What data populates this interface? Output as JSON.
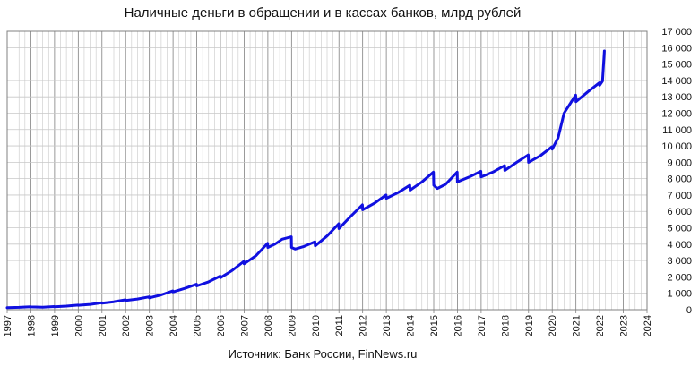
{
  "chart_data": {
    "type": "line",
    "title": "Наличные деньги в обращении и в кассах банков, млрд рублей",
    "source": "Источник: Банк России, FinNews.ru",
    "xlabel": "",
    "ylabel": "",
    "xlim": [
      1997,
      2024
    ],
    "ylim": [
      0,
      17000
    ],
    "grid": true,
    "legend": "none",
    "x_ticks": [
      "1997",
      "1998",
      "1999",
      "2000",
      "2001",
      "2002",
      "2003",
      "2004",
      "2005",
      "2006",
      "2007",
      "2008",
      "2009",
      "2010",
      "2011",
      "2012",
      "2013",
      "2014",
      "2015",
      "2016",
      "2017",
      "2018",
      "2019",
      "2020",
      "2021",
      "2022",
      "2023",
      "2024"
    ],
    "y_ticks": [
      "0",
      "1 000",
      "2 000",
      "3 000",
      "4 000",
      "5 000",
      "6 000",
      "7 000",
      "8 000",
      "9 000",
      "10 000",
      "11 000",
      "12 000",
      "13 000",
      "14 000",
      "15 000",
      "16 000",
      "17 000"
    ],
    "y_tick_values": [
      0,
      1000,
      2000,
      3000,
      4000,
      5000,
      6000,
      7000,
      8000,
      9000,
      10000,
      11000,
      12000,
      13000,
      14000,
      15000,
      16000,
      17000
    ],
    "colors": {
      "line": "#1010e0",
      "grid": "#c8c8c8",
      "axis": "#808080"
    },
    "series": [
      {
        "name": "",
        "x": [
          1997.0,
          1997.5,
          1997.99,
          1998.0,
          1998.5,
          1998.99,
          1999.0,
          1999.5,
          1999.99,
          2000.0,
          2000.5,
          2000.99,
          2001.0,
          2001.5,
          2001.99,
          2002.0,
          2002.5,
          2002.99,
          2003.0,
          2003.5,
          2003.99,
          2004.0,
          2004.5,
          2004.99,
          2005.0,
          2005.5,
          2005.99,
          2006.0,
          2006.5,
          2006.99,
          2007.0,
          2007.5,
          2007.99,
          2008.0,
          2008.3,
          2008.6,
          2008.99,
          2009.0,
          2009.15,
          2009.5,
          2009.99,
          2010.0,
          2010.5,
          2010.99,
          2011.0,
          2011.5,
          2011.99,
          2012.0,
          2012.5,
          2012.99,
          2013.0,
          2013.5,
          2013.99,
          2014.0,
          2014.5,
          2014.99,
          2015.0,
          2015.15,
          2015.5,
          2015.99,
          2016.0,
          2016.5,
          2016.99,
          2017.0,
          2017.5,
          2017.99,
          2018.0,
          2018.5,
          2018.99,
          2019.0,
          2019.5,
          2019.99,
          2020.0,
          2020.25,
          2020.5,
          2020.99,
          2021.0,
          2021.5,
          2021.99,
          2022.0,
          2022.12,
          2022.2
        ],
        "values": [
          120,
          140,
          180,
          170,
          150,
          190,
          180,
          220,
          280,
          270,
          320,
          420,
          400,
          480,
          600,
          560,
          650,
          780,
          720,
          900,
          1150,
          1080,
          1300,
          1550,
          1450,
          1700,
          2050,
          1950,
          2400,
          2950,
          2800,
          3300,
          4050,
          3800,
          4000,
          4300,
          4450,
          3800,
          3700,
          3850,
          4150,
          3900,
          4500,
          5250,
          4950,
          5700,
          6400,
          6100,
          6500,
          7000,
          6800,
          7150,
          7600,
          7300,
          7800,
          8400,
          7600,
          7400,
          7650,
          8400,
          7800,
          8100,
          8450,
          8100,
          8400,
          8800,
          8500,
          9000,
          9450,
          9000,
          9400,
          9950,
          9800,
          10500,
          12000,
          13100,
          12700,
          13300,
          13850,
          13700,
          13950,
          15800
        ]
      }
    ]
  }
}
